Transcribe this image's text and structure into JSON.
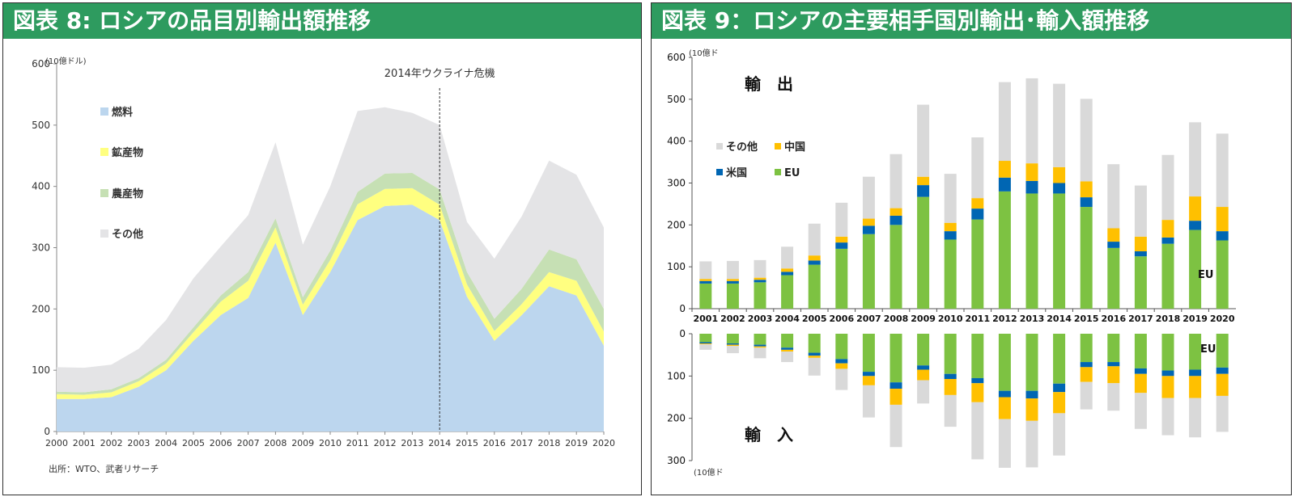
{
  "panel8": {
    "title": "図表 8: ロシアの品目別輸出額推移",
    "source_note": "出所：WTO、武者リサーチ"
  },
  "panel9": {
    "title": "図表 9：ロシアの主要相手国別輸出･輸入額推移"
  },
  "chart_data": [
    {
      "type": "area",
      "stacked": true,
      "unit_label": "(10億ドル)",
      "x": [
        2000,
        2001,
        2002,
        2003,
        2004,
        2005,
        2006,
        2007,
        2008,
        2009,
        2010,
        2011,
        2012,
        2013,
        2014,
        2015,
        2016,
        2017,
        2018,
        2019,
        2020
      ],
      "ylim": [
        0,
        600
      ],
      "yticks": [
        0,
        100,
        200,
        300,
        400,
        500,
        600
      ],
      "annotation": {
        "x": 2014,
        "label": "2014年ウクライナ危機"
      },
      "legend_position": "left",
      "series": [
        {
          "name": "燃料",
          "color": "#bcd6ee",
          "values": [
            53,
            53,
            56,
            73,
            100,
            148,
            190,
            218,
            308,
            190,
            260,
            345,
            368,
            370,
            345,
            220,
            148,
            190,
            237,
            222,
            140
          ]
        },
        {
          "name": "鉱産物",
          "color": "#ffff80",
          "values": [
            8,
            7,
            8,
            9,
            11,
            14,
            22,
            28,
            25,
            17,
            20,
            26,
            28,
            27,
            25,
            20,
            16,
            18,
            23,
            24,
            23
          ]
        },
        {
          "name": "農産物",
          "color": "#c6e0b4",
          "values": [
            4,
            4,
            5,
            5,
            6,
            8,
            10,
            14,
            15,
            12,
            15,
            20,
            25,
            25,
            25,
            20,
            20,
            25,
            37,
            35,
            37
          ]
        },
        {
          "name": "その他",
          "color": "#e4e4e6",
          "values": [
            40,
            40,
            40,
            48,
            65,
            80,
            80,
            93,
            124,
            86,
            105,
            132,
            108,
            98,
            105,
            82,
            98,
            118,
            145,
            138,
            133
          ]
        }
      ]
    },
    {
      "type": "bar",
      "stacked": true,
      "unit_label": "(10億ド",
      "x": [
        2001,
        2002,
        2003,
        2004,
        2005,
        2006,
        2007,
        2008,
        2009,
        2010,
        2011,
        2012,
        2013,
        2014,
        2015,
        2016,
        2017,
        2018,
        2019,
        2020
      ],
      "legend_position": "top-left",
      "export": {
        "label": "輸　出",
        "ylim": [
          0,
          600
        ],
        "yticks": [
          0,
          100,
          200,
          300,
          400,
          500,
          600
        ],
        "annotation": "EU",
        "series": [
          {
            "name": "EU",
            "color": "#7dc242",
            "values": [
              60,
              60,
              63,
              80,
              105,
              143,
              178,
              200,
              267,
              165,
              213,
              280,
              275,
              275,
              243,
              145,
              125,
              155,
              188,
              163
            ]
          },
          {
            "name": "米国",
            "color": "#0066b3",
            "values": [
              6,
              6,
              6,
              8,
              10,
              15,
              20,
              22,
              28,
              20,
              26,
              33,
              30,
              25,
              23,
              15,
              12,
              15,
              22,
              22
            ]
          },
          {
            "name": "中国",
            "color": "#ffc000",
            "values": [
              5,
              5,
              5,
              8,
              12,
              14,
              17,
              18,
              20,
              20,
              25,
              40,
              42,
              38,
              38,
              32,
              35,
              42,
              58,
              58
            ]
          },
          {
            "name": "その他",
            "color": "#d9d9d9",
            "values": [
              42,
              43,
              42,
              52,
              76,
              81,
              100,
              129,
              172,
              117,
              145,
              188,
              203,
              199,
              197,
              153,
              122,
              155,
              177,
              175
            ]
          }
        ]
      },
      "import": {
        "label": "輸　入",
        "ylim": [
          0,
          300
        ],
        "yticks": [
          0,
          100,
          200,
          300
        ],
        "annotation": "EU",
        "series": [
          {
            "name": "EU",
            "color": "#7dc242",
            "values": [
              20,
              23,
              26,
              33,
              45,
              60,
              90,
              115,
              75,
              95,
              105,
              135,
              135,
              118,
              67,
              67,
              82,
              87,
              85,
              80
            ]
          },
          {
            "name": "米国",
            "color": "#0066b3",
            "values": [
              3,
              3,
              4,
              5,
              7,
              10,
              10,
              15,
              10,
              12,
              12,
              15,
              18,
              20,
              12,
              10,
              13,
              13,
              15,
              15
            ]
          },
          {
            "name": "中国",
            "color": "#ffc000",
            "values": [
              2,
              3,
              3,
              4,
              5,
              13,
              22,
              38,
              25,
              38,
              45,
              52,
              53,
              50,
              35,
              40,
              45,
              52,
              52,
              52
            ]
          },
          {
            "name": "その他",
            "color": "#d9d9d9",
            "values": [
              13,
              17,
              25,
              25,
              42,
              50,
              76,
              100,
              55,
              75,
              135,
              115,
              110,
              100,
              65,
              65,
              85,
              88,
              93,
              85
            ]
          }
        ]
      },
      "legend_labels": {
        "other": "その他",
        "china": "中国",
        "us": "米国",
        "eu": "EU"
      }
    }
  ]
}
